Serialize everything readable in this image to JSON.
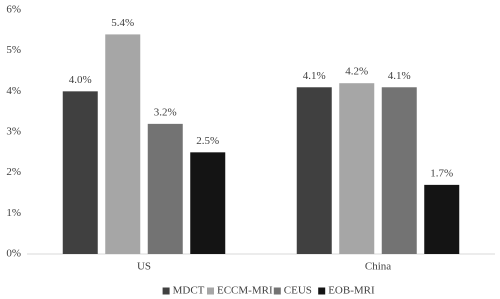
{
  "chart_data": {
    "type": "bar",
    "categories": [
      "US",
      "China"
    ],
    "series": [
      {
        "name": "MDCT",
        "color": "#404040",
        "values": [
          4.0,
          4.1
        ],
        "value_labels": [
          "4.0%",
          "4.1%"
        ]
      },
      {
        "name": "ECCM-MRI",
        "color": "#a6a6a6",
        "values": [
          5.4,
          4.2
        ],
        "value_labels": [
          "5.4%",
          "4.2%"
        ]
      },
      {
        "name": "CEUS",
        "color": "#737373",
        "values": [
          3.2,
          4.1
        ],
        "value_labels": [
          "3.2%",
          "4.1%"
        ]
      },
      {
        "name": "EOB-MRI",
        "color": "#141414",
        "values": [
          2.5,
          1.7
        ],
        "value_labels": [
          "2.5%",
          "1.7%"
        ]
      }
    ],
    "ylim": [
      0,
      6
    ],
    "yticks": [
      {
        "value": 0,
        "label": "0%"
      },
      {
        "value": 1,
        "label": "1%"
      },
      {
        "value": 2,
        "label": "2%"
      },
      {
        "value": 3,
        "label": "3%"
      },
      {
        "value": 4,
        "label": "4%"
      },
      {
        "value": 5,
        "label": "5%"
      },
      {
        "value": 6,
        "label": "6%"
      }
    ],
    "grid": false,
    "legend": "bottom"
  }
}
